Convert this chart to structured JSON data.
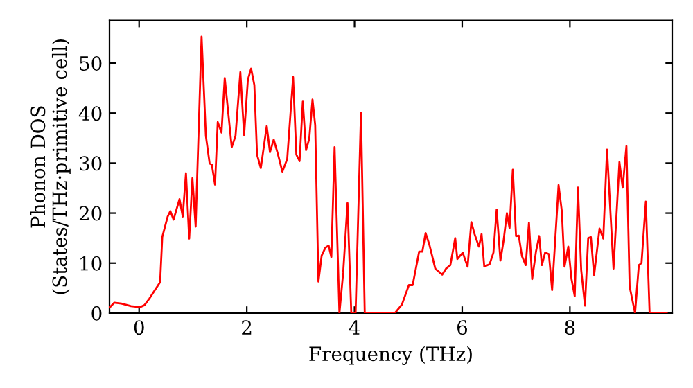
{
  "chart_data": {
    "type": "line",
    "xlabel": "Frequency (THz)",
    "ylabel": "Phonon DOS\n(States/THz·primitive cell)",
    "xlim": [
      -0.55,
      9.9
    ],
    "ylim": [
      0,
      58.5
    ],
    "xticks": [
      0,
      2,
      4,
      6,
      8
    ],
    "yticks": [
      0,
      10,
      20,
      30,
      40,
      50
    ],
    "grid": false,
    "marker": "none",
    "line_style": "solid",
    "series": [
      {
        "color": "#ff0000",
        "x": [
          -0.54,
          -0.46,
          -0.33,
          -0.15,
          0.02,
          0.1,
          0.19,
          0.28,
          0.39,
          0.43,
          0.53,
          0.58,
          0.64,
          0.75,
          0.81,
          0.87,
          0.93,
          0.99,
          1.05,
          1.16,
          1.24,
          1.31,
          1.35,
          1.41,
          1.46,
          1.53,
          1.59,
          1.72,
          1.79,
          1.88,
          1.95,
          2.02,
          2.08,
          2.14,
          2.19,
          2.26,
          2.37,
          2.43,
          2.5,
          2.58,
          2.66,
          2.75,
          2.86,
          2.92,
          2.98,
          3.04,
          3.1,
          3.16,
          3.22,
          3.27,
          3.33,
          3.39,
          3.46,
          3.52,
          3.57,
          3.63,
          3.72,
          3.79,
          3.87,
          3.94,
          4.02,
          4.12,
          4.19,
          4.75,
          4.88,
          5.01,
          5.08,
          5.2,
          5.26,
          5.32,
          5.39,
          5.5,
          5.63,
          5.7,
          5.78,
          5.87,
          5.91,
          6.01,
          6.1,
          6.17,
          6.23,
          6.31,
          6.36,
          6.41,
          6.51,
          6.58,
          6.64,
          6.71,
          6.77,
          6.83,
          6.88,
          6.94,
          7.0,
          7.05,
          7.11,
          7.18,
          7.24,
          7.3,
          7.37,
          7.43,
          7.48,
          7.54,
          7.61,
          7.67,
          7.79,
          7.85,
          7.9,
          7.97,
          8.03,
          8.09,
          8.15,
          8.21,
          8.28,
          8.34,
          8.39,
          8.45,
          8.55,
          8.62,
          8.69,
          8.81,
          8.92,
          8.98,
          9.05,
          9.11,
          9.21,
          9.28,
          9.33,
          9.41,
          9.48,
          9.8
        ],
        "values": [
          1.2,
          2.1,
          1.9,
          1.4,
          1.2,
          1.6,
          2.9,
          4.4,
          6.2,
          15.2,
          19.3,
          20.4,
          18.7,
          22.8,
          19.3,
          28,
          14.9,
          27,
          17.3,
          55.3,
          35.4,
          29.9,
          29.7,
          25.7,
          38.2,
          36.1,
          47,
          33.2,
          35.4,
          48.2,
          35.6,
          46.7,
          48.9,
          45.6,
          31.7,
          29,
          37.4,
          32.2,
          34.7,
          31.7,
          28.3,
          30.8,
          47.2,
          31.7,
          30.4,
          42.3,
          32.6,
          34.9,
          42.7,
          37.6,
          6.3,
          11.5,
          13.1,
          13.5,
          11.2,
          33.2,
          0,
          8.1,
          22,
          0,
          0,
          40.1,
          0,
          0,
          1.7,
          5.6,
          5.6,
          12.3,
          12.3,
          16,
          13.7,
          8.9,
          7.7,
          8.9,
          9.6,
          15,
          10.8,
          12.1,
          9.3,
          18.2,
          15.8,
          13.3,
          15.8,
          9.3,
          9.8,
          12.1,
          20.7,
          10.5,
          14.6,
          20,
          17,
          28.7,
          15.4,
          15.5,
          11.4,
          9.6,
          18.1,
          6.8,
          12.3,
          15.4,
          9.6,
          12.1,
          11.8,
          4.6,
          25.6,
          20.4,
          9.3,
          13.3,
          6.8,
          3.4,
          25.1,
          8.6,
          1.5,
          15,
          15.2,
          7.6,
          16.9,
          14.9,
          32.7,
          8.9,
          30.2,
          25.1,
          33.4,
          5.3,
          0,
          9.6,
          10,
          22.3,
          0,
          0
        ]
      }
    ]
  }
}
